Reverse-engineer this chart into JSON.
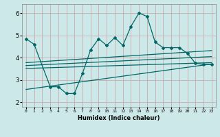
{
  "xlabel": "Humidex (Indice chaleur)",
  "bg_color": "#cce8e8",
  "line_color": "#006666",
  "grid_color_h": "#c8a0a0",
  "grid_color_v": "#c8a0a0",
  "xlim": [
    -0.5,
    23.5
  ],
  "ylim": [
    1.8,
    6.4
  ],
  "xticks": [
    0,
    1,
    2,
    3,
    4,
    5,
    6,
    7,
    8,
    9,
    10,
    11,
    12,
    13,
    14,
    15,
    16,
    17,
    18,
    19,
    20,
    21,
    22,
    23
  ],
  "yticks": [
    2,
    3,
    4,
    5,
    6
  ],
  "scatter_x": [
    0,
    1,
    3,
    4,
    5,
    6,
    7,
    8,
    9,
    10,
    11,
    12,
    13,
    14,
    15,
    16,
    17,
    18,
    19,
    20,
    21,
    22,
    23
  ],
  "scatter_y": [
    4.85,
    4.6,
    2.7,
    2.7,
    2.4,
    2.4,
    3.3,
    4.35,
    4.85,
    4.55,
    4.9,
    4.55,
    5.4,
    6.0,
    5.85,
    4.7,
    4.45,
    4.45,
    4.45,
    4.2,
    3.75,
    3.7,
    3.7
  ],
  "trend1_x": [
    0,
    23
  ],
  "trend1_y": [
    3.52,
    3.78
  ],
  "trend2_x": [
    0,
    23
  ],
  "trend2_y": [
    3.65,
    4.05
  ],
  "trend3_x": [
    0,
    23
  ],
  "trend3_y": [
    3.78,
    4.32
  ],
  "trend4_x": [
    0,
    23
  ],
  "trend4_y": [
    2.58,
    3.72
  ]
}
